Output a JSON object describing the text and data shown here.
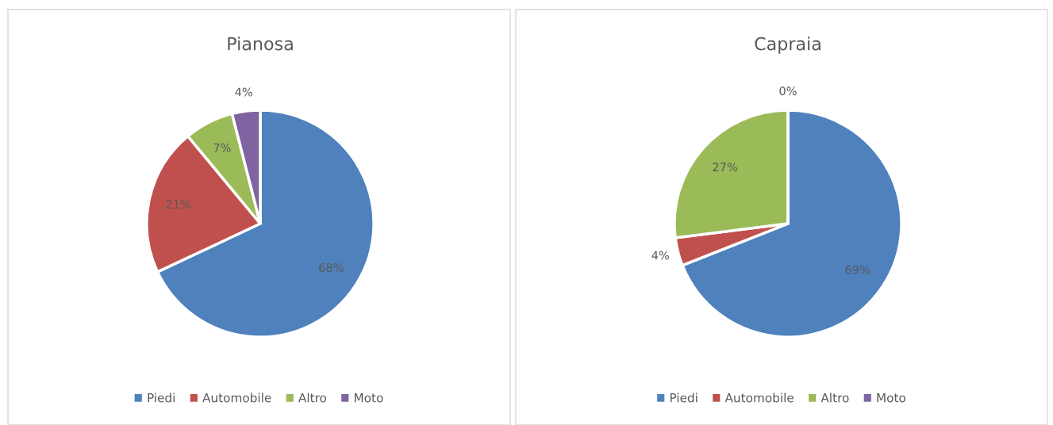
{
  "chart_data": [
    {
      "type": "pie",
      "title": "Pianosa",
      "categories": [
        "Piedi",
        "Automobile",
        "Altro",
        "Moto"
      ],
      "values": [
        68,
        21,
        7,
        4
      ],
      "colors": [
        "#4f81bd",
        "#c0504d",
        "#9bbb59",
        "#8064a2"
      ],
      "value_labels": [
        "68%",
        "21%",
        "7%",
        "4%"
      ],
      "legend": "bottom"
    },
    {
      "type": "pie",
      "title": "Capraia",
      "categories": [
        "Piedi",
        "Automobile",
        "Altro",
        "Moto"
      ],
      "values": [
        69,
        4,
        27,
        0
      ],
      "colors": [
        "#4f81bd",
        "#c0504d",
        "#9bbb59",
        "#8064a2"
      ],
      "value_labels": [
        "69%",
        "4%",
        "27%",
        "0%"
      ],
      "legend": "bottom"
    }
  ]
}
